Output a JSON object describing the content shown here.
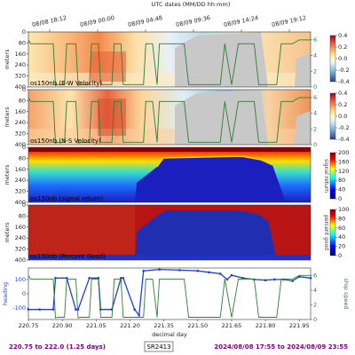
{
  "top_axis_label": "UTC dates (MM/DD hh:mm)",
  "top_ticks": [
    "08/08 18:12",
    "08/09 00:00",
    "08/09 04:48",
    "08/09 09:36",
    "08/09 14:24",
    "08/09 19:12"
  ],
  "footer": {
    "range": "220.75 to 222.0 (1.25 days)",
    "ship": "SR2413",
    "dates": "2024/08/08 17:55 to 2024/08/09 23:55"
  },
  "colors": {
    "footer_left": "#800080",
    "footer_right": "#800080",
    "heading": "#1f3fd8",
    "speed": "#2e7d32",
    "nodata": "#c8c8c8"
  },
  "chart_data": [
    {
      "type": "heatmap",
      "title": "os150nb (E-W Velocity)",
      "ylabel": "meters",
      "y_ticks": [
        "0",
        "80",
        "160",
        "240",
        "320",
        "400"
      ],
      "cbar_ticks": [
        "0.4",
        "0.2",
        "0.0",
        "-0.2",
        "-0.4"
      ],
      "colormap": "diverging",
      "right_ticks": [
        "6",
        "4",
        "2",
        "0"
      ],
      "ylim": [
        400,
        0
      ]
    },
    {
      "type": "heatmap",
      "title": "os150nb (N-S Velocity)",
      "ylabel": "meters",
      "y_ticks": [
        "0",
        "80",
        "160",
        "240",
        "320",
        "400"
      ],
      "cbar_ticks": [
        "0.4",
        "0.2",
        "0.0",
        "-0.2",
        "-0.4"
      ],
      "colormap": "diverging",
      "right_ticks": [
        "6",
        "4",
        "2",
        "0"
      ],
      "ylim": [
        400,
        0
      ]
    },
    {
      "type": "heatmap",
      "title": "os150nb (signal return)",
      "ylabel": "meters",
      "y_ticks": [
        "0",
        "80",
        "160",
        "240",
        "320",
        "400"
      ],
      "cbar_ticks": [
        "200",
        "160",
        "120",
        "80",
        "40",
        "0"
      ],
      "cbar_label": "signal return",
      "colormap": "jet",
      "ylim": [
        400,
        0
      ]
    },
    {
      "type": "heatmap",
      "title": "os150nb (Percent Good)",
      "ylabel": "meters",
      "y_ticks": [
        "0",
        "80",
        "160",
        "240",
        "320",
        "400"
      ],
      "cbar_ticks": [
        "100",
        "80",
        "60",
        "40",
        "20",
        "0"
      ],
      "cbar_label": "percent good",
      "colormap": "jet",
      "ylim": [
        400,
        0
      ]
    },
    {
      "type": "line",
      "xlabel": "decimal day",
      "ylabel_left": "heading",
      "ylabel_right": "ship speed",
      "x_ticks": [
        "220.75",
        "220.90",
        "221.05",
        "221.20",
        "221.35",
        "221.50",
        "221.65",
        "221.80",
        "221.95"
      ],
      "y_ticks_left": [
        "100",
        "0",
        "-100"
      ],
      "y_ticks_right": [
        "6",
        "4",
        "2",
        "0"
      ],
      "xlim": [
        220.75,
        222.0
      ],
      "series": [
        {
          "name": "heading",
          "x": [
            220.75,
            220.8,
            220.86,
            220.87,
            220.92,
            220.96,
            220.97,
            221.02,
            221.06,
            221.07,
            221.12,
            221.16,
            221.17,
            221.22,
            221.24,
            221.26,
            221.33,
            221.42,
            221.5,
            221.55,
            221.6,
            221.63,
            221.65,
            221.7,
            221.75,
            221.8,
            221.84,
            221.88,
            221.92,
            221.95,
            222.0
          ],
          "values": [
            -110,
            -110,
            -110,
            110,
            110,
            -110,
            -110,
            110,
            110,
            -110,
            -110,
            110,
            110,
            -110,
            -150,
            160,
            170,
            165,
            160,
            150,
            140,
            100,
            130,
            110,
            100,
            95,
            100,
            100,
            90,
            120,
            110
          ]
        },
        {
          "name": "ship speed",
          "x": [
            220.75,
            220.76,
            220.86,
            220.87,
            220.88,
            220.91,
            220.92,
            220.93,
            220.96,
            220.97,
            220.98,
            221.02,
            221.03,
            221.05,
            221.06,
            221.07,
            221.12,
            221.13,
            221.16,
            221.17,
            221.26,
            221.27,
            221.3,
            221.32,
            221.33,
            221.44,
            221.46,
            221.6,
            221.62,
            221.65,
            221.68,
            221.75,
            221.77,
            221.85,
            221.87,
            221.92,
            221.95,
            222.0
          ],
          "values": [
            6,
            5.5,
            5.5,
            0.2,
            0.3,
            0.3,
            5.5,
            5.5,
            5.5,
            0.2,
            0.3,
            0.3,
            5.5,
            5.5,
            5.5,
            0.3,
            0.3,
            5.5,
            5.5,
            0.3,
            0.3,
            5.5,
            5.5,
            0.3,
            5.5,
            5.5,
            0.3,
            0.3,
            5.5,
            0.3,
            5.5,
            5.5,
            0.3,
            0.3,
            5.5,
            5.5,
            6,
            6
          ]
        }
      ]
    }
  ]
}
